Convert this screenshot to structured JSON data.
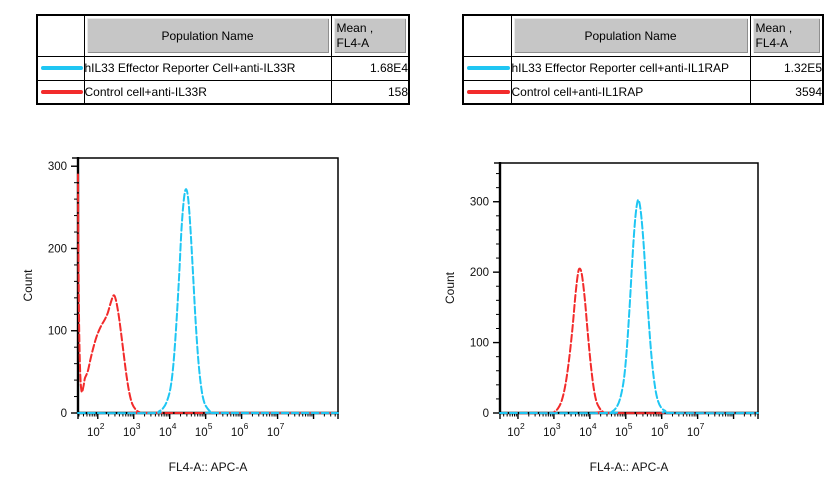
{
  "tables": [
    {
      "header": {
        "population": "Population Name",
        "mean_line1": "Mean ,",
        "mean_line2": "FL4-A"
      },
      "rows": [
        {
          "name": "hIL33 Effector Reporter Cell+anti-IL33R",
          "mean": "1.68E4",
          "color": "#1fc6f3"
        },
        {
          "name": "Control cell+anti-IL33R",
          "mean": "158",
          "color": "#f22b2b"
        }
      ]
    },
    {
      "header": {
        "population": "Population Name",
        "mean_line1": "Mean ,",
        "mean_line2": "FL4-A"
      },
      "rows": [
        {
          "name": "hIL33 Effector Reporter cell+anti-IL1RAP",
          "mean": "1.32E5",
          "color": "#1fc6f3"
        },
        {
          "name": "Control cell+anti-IL1RAP",
          "mean": "3594",
          "color": "#f22b2b"
        }
      ]
    }
  ],
  "colors": {
    "cyan": "#1fc6f3",
    "red": "#f22b2b",
    "axis": "#000000"
  },
  "chart_data": [
    {
      "type": "line",
      "title": "",
      "xlabel": "FL4-A:: APC-A",
      "ylabel": "Count",
      "xscale": "log",
      "xlim_log10": [
        1.45,
        8.68
      ],
      "xticks_labeled": [
        2,
        3,
        4,
        5,
        6,
        7
      ],
      "ylim": [
        0,
        310
      ],
      "yticks": [
        0,
        100,
        200,
        300
      ],
      "ytick_minor_step": 20,
      "grid": false,
      "legend_position": "none",
      "series": [
        {
          "name": "Control cell+anti-IL33R",
          "color": "#f22b2b",
          "mean_fl4a": "158",
          "points_log10x_count": [
            [
              1.45,
              290
            ],
            [
              1.46,
              210
            ],
            [
              1.48,
              110
            ],
            [
              1.51,
              50
            ],
            [
              1.55,
              26
            ],
            [
              1.6,
              32
            ],
            [
              1.64,
              42
            ],
            [
              1.68,
              46
            ],
            [
              1.73,
              52
            ],
            [
              1.8,
              66
            ],
            [
              1.88,
              80
            ],
            [
              1.96,
              92
            ],
            [
              2.04,
              101
            ],
            [
              2.12,
              108
            ],
            [
              2.2,
              114
            ],
            [
              2.28,
              122
            ],
            [
              2.36,
              134
            ],
            [
              2.44,
              143
            ],
            [
              2.5,
              138
            ],
            [
              2.57,
              122
            ],
            [
              2.64,
              100
            ],
            [
              2.72,
              72
            ],
            [
              2.8,
              45
            ],
            [
              2.88,
              24
            ],
            [
              2.96,
              11
            ],
            [
              3.06,
              4
            ],
            [
              3.16,
              1
            ],
            [
              3.3,
              0
            ],
            [
              8.68,
              0
            ]
          ]
        },
        {
          "name": "hIL33 Effector Reporter Cell+anti-IL33R",
          "color": "#1fc6f3",
          "mean_fl4a": "1.68E4",
          "points_log10x_count": [
            [
              1.45,
              0
            ],
            [
              3.55,
              0
            ],
            [
              3.7,
              2
            ],
            [
              3.82,
              6
            ],
            [
              3.92,
              14
            ],
            [
              4.02,
              30
            ],
            [
              4.1,
              58
            ],
            [
              4.18,
              105
            ],
            [
              4.26,
              165
            ],
            [
              4.33,
              225
            ],
            [
              4.4,
              262
            ],
            [
              4.46,
              272
            ],
            [
              4.52,
              258
            ],
            [
              4.58,
              222
            ],
            [
              4.65,
              168
            ],
            [
              4.72,
              112
            ],
            [
              4.8,
              62
            ],
            [
              4.88,
              30
            ],
            [
              4.96,
              13
            ],
            [
              5.06,
              5
            ],
            [
              5.16,
              1
            ],
            [
              5.3,
              0
            ],
            [
              8.68,
              0
            ]
          ]
        }
      ]
    },
    {
      "type": "line",
      "title": "",
      "xlabel": "FL4-A:: APC-A",
      "ylabel": "Count",
      "xscale": "log",
      "xlim_log10": [
        1.5,
        8.68
      ],
      "xticks_labeled": [
        2,
        3,
        4,
        5,
        6,
        7
      ],
      "ylim": [
        0,
        355
      ],
      "yticks": [
        0,
        100,
        200,
        300
      ],
      "ytick_minor_step": 20,
      "grid": false,
      "legend_position": "none",
      "series": [
        {
          "name": "Control cell+anti-IL1RAP",
          "color": "#f22b2b",
          "mean_fl4a": "3594",
          "points_log10x_count": [
            [
              1.5,
              0
            ],
            [
              2.9,
              0
            ],
            [
              3.02,
              2
            ],
            [
              3.12,
              7
            ],
            [
              3.22,
              18
            ],
            [
              3.32,
              40
            ],
            [
              3.42,
              75
            ],
            [
              3.52,
              122
            ],
            [
              3.6,
              168
            ],
            [
              3.67,
              198
            ],
            [
              3.72,
              205
            ],
            [
              3.78,
              196
            ],
            [
              3.86,
              162
            ],
            [
              3.94,
              115
            ],
            [
              4.02,
              72
            ],
            [
              4.1,
              38
            ],
            [
              4.18,
              17
            ],
            [
              4.27,
              7
            ],
            [
              4.36,
              2
            ],
            [
              4.5,
              0
            ],
            [
              8.68,
              0
            ]
          ]
        },
        {
          "name": "hIL33 Effector Reporter cell+anti-IL1RAP",
          "color": "#1fc6f3",
          "mean_fl4a": "1.32E5",
          "points_log10x_count": [
            [
              1.5,
              0
            ],
            [
              4.5,
              0
            ],
            [
              4.62,
              2
            ],
            [
              4.74,
              8
            ],
            [
              4.84,
              20
            ],
            [
              4.94,
              45
            ],
            [
              5.02,
              85
            ],
            [
              5.1,
              145
            ],
            [
              5.18,
              215
            ],
            [
              5.25,
              268
            ],
            [
              5.31,
              296
            ],
            [
              5.36,
              302
            ],
            [
              5.42,
              285
            ],
            [
              5.49,
              245
            ],
            [
              5.56,
              190
            ],
            [
              5.64,
              130
            ],
            [
              5.72,
              78
            ],
            [
              5.8,
              42
            ],
            [
              5.88,
              20
            ],
            [
              5.98,
              8
            ],
            [
              6.1,
              3
            ],
            [
              6.25,
              0
            ],
            [
              8.68,
              0
            ]
          ]
        }
      ]
    }
  ]
}
